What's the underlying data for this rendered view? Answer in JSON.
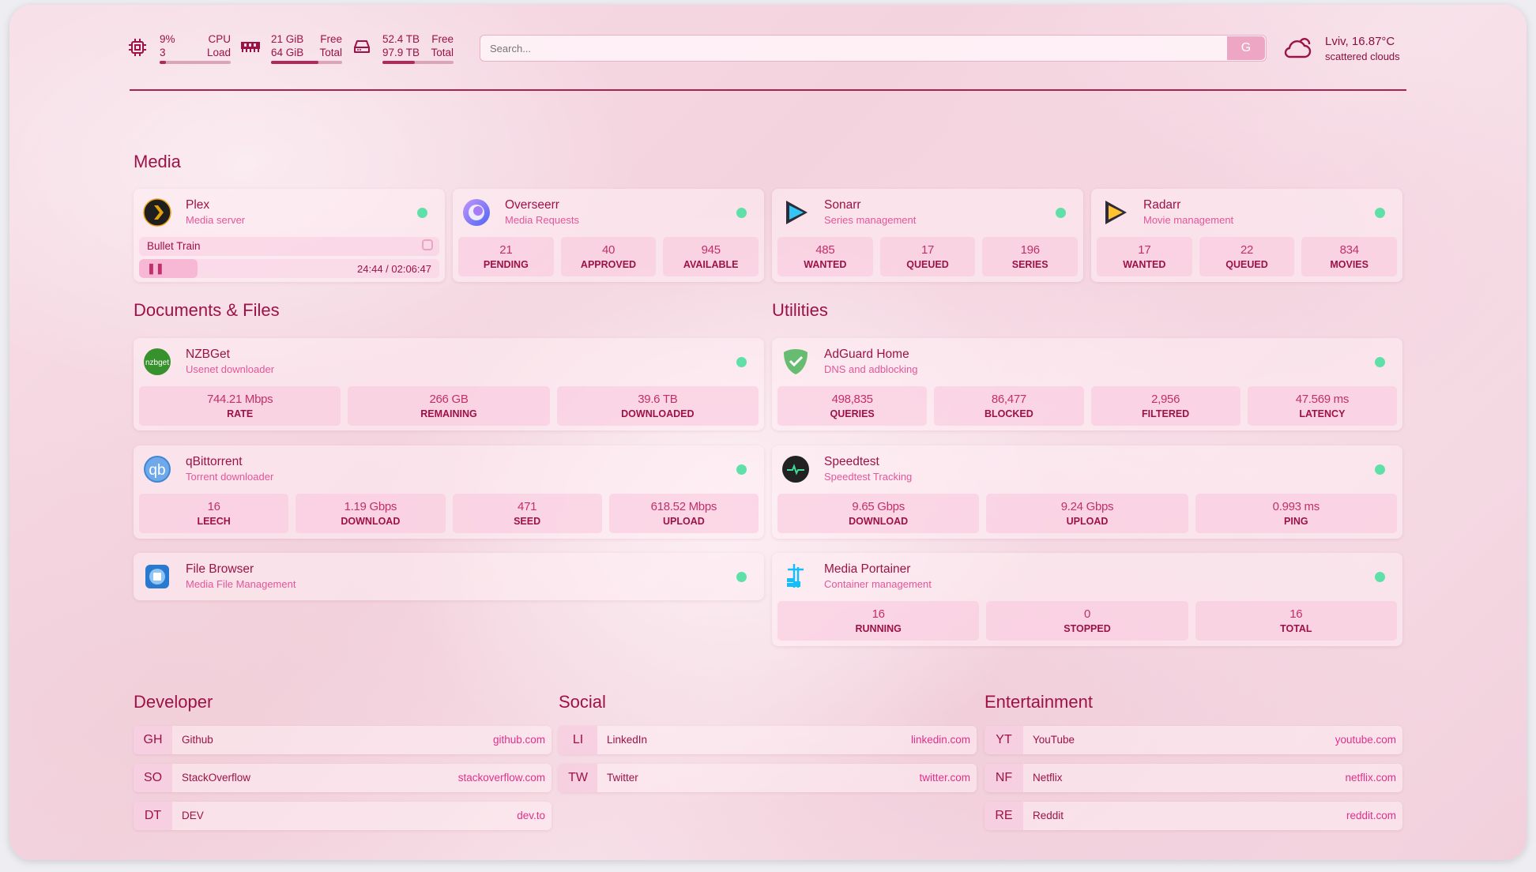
{
  "colors": {
    "accent": "#9d1246",
    "subtitle": "#e4559a",
    "status_online": "#5fe0a8",
    "search_button": "#eda6c3"
  },
  "header": {
    "cpu": {
      "icon": "cpu-icon",
      "value": "9%",
      "label": "CPU",
      "value2": "3",
      "label2": "Load",
      "percent": 9
    },
    "memory": {
      "icon": "memory-icon",
      "value": "21 GiB",
      "label": "Free",
      "value2": "64 GiB",
      "label2": "Total",
      "percent": 67
    },
    "disk": {
      "icon": "hard-drive-icon",
      "value": "52.4 TB",
      "label": "Free",
      "value2": "97.9 TB",
      "label2": "Total",
      "percent": 46
    },
    "search": {
      "placeholder": "Search...",
      "button": "G"
    },
    "weather": {
      "icon": "cloud-sun-icon",
      "location": "Lviv, 16.87°C",
      "condition": "scattered clouds"
    }
  },
  "media": {
    "title": "Media",
    "cards": [
      {
        "name": "Plex",
        "desc": "Media server",
        "icon": "plex-icon",
        "now_playing": {
          "title": "Bullet Train",
          "time": "24:44 / 02:06:47",
          "progress": 19.5
        }
      },
      {
        "name": "Overseerr",
        "desc": "Media Requests",
        "icon": "overseerr-icon",
        "stats": [
          {
            "v": "21",
            "k": "PENDING"
          },
          {
            "v": "40",
            "k": "APPROVED"
          },
          {
            "v": "945",
            "k": "AVAILABLE"
          }
        ]
      },
      {
        "name": "Sonarr",
        "desc": "Series management",
        "icon": "sonarr-icon",
        "stats": [
          {
            "v": "485",
            "k": "WANTED"
          },
          {
            "v": "17",
            "k": "QUEUED"
          },
          {
            "v": "196",
            "k": "SERIES"
          }
        ]
      },
      {
        "name": "Radarr",
        "desc": "Movie management",
        "icon": "radarr-icon",
        "stats": [
          {
            "v": "17",
            "k": "WANTED"
          },
          {
            "v": "22",
            "k": "QUEUED"
          },
          {
            "v": "834",
            "k": "MOVIES"
          }
        ]
      }
    ]
  },
  "documents": {
    "title": "Documents & Files",
    "cards": [
      {
        "name": "NZBGet",
        "desc": "Usenet downloader",
        "icon": "nzbget-icon",
        "stats": [
          {
            "v": "744.21 Mbps",
            "k": "RATE"
          },
          {
            "v": "266 GB",
            "k": "REMAINING"
          },
          {
            "v": "39.6 TB",
            "k": "DOWNLOADED"
          }
        ]
      },
      {
        "name": "qBittorrent",
        "desc": "Torrent downloader",
        "icon": "qbittorrent-icon",
        "stats": [
          {
            "v": "16",
            "k": "LEECH"
          },
          {
            "v": "1.19 Gbps",
            "k": "DOWNLOAD"
          },
          {
            "v": "471",
            "k": "SEED"
          },
          {
            "v": "618.52 Mbps",
            "k": "UPLOAD"
          }
        ]
      },
      {
        "name": "File Browser",
        "desc": "Media File Management",
        "icon": "file-browser-icon"
      }
    ]
  },
  "utilities": {
    "title": "Utilities",
    "cards": [
      {
        "name": "AdGuard Home",
        "desc": "DNS and adblocking",
        "icon": "adguard-icon",
        "stats": [
          {
            "v": "498,835",
            "k": "QUERIES"
          },
          {
            "v": "86,477",
            "k": "BLOCKED"
          },
          {
            "v": "2,956",
            "k": "FILTERED"
          },
          {
            "v": "47.569 ms",
            "k": "LATENCY"
          }
        ]
      },
      {
        "name": "Speedtest",
        "desc": "Speedtest Tracking",
        "icon": "speedtest-icon",
        "stats": [
          {
            "v": "9.65 Gbps",
            "k": "DOWNLOAD"
          },
          {
            "v": "9.24 Gbps",
            "k": "UPLOAD"
          },
          {
            "v": "0.993 ms",
            "k": "PING"
          }
        ]
      },
      {
        "name": "Media Portainer",
        "desc": "Container management",
        "icon": "portainer-icon",
        "stats": [
          {
            "v": "16",
            "k": "RUNNING"
          },
          {
            "v": "0",
            "k": "STOPPED"
          },
          {
            "v": "16",
            "k": "TOTAL"
          }
        ]
      }
    ]
  },
  "bookmarks": [
    {
      "title": "Developer",
      "links": [
        {
          "abbr": "GH",
          "name": "Github",
          "url": "github.com"
        },
        {
          "abbr": "SO",
          "name": "StackOverflow",
          "url": "stackoverflow.com"
        },
        {
          "abbr": "DT",
          "name": "DEV",
          "url": "dev.to"
        }
      ]
    },
    {
      "title": "Social",
      "links": [
        {
          "abbr": "LI",
          "name": "LinkedIn",
          "url": "linkedin.com"
        },
        {
          "abbr": "TW",
          "name": "Twitter",
          "url": "twitter.com"
        }
      ]
    },
    {
      "title": "Entertainment",
      "links": [
        {
          "abbr": "YT",
          "name": "YouTube",
          "url": "youtube.com"
        },
        {
          "abbr": "NF",
          "name": "Netflix",
          "url": "netflix.com"
        },
        {
          "abbr": "RE",
          "name": "Reddit",
          "url": "reddit.com"
        }
      ]
    }
  ]
}
